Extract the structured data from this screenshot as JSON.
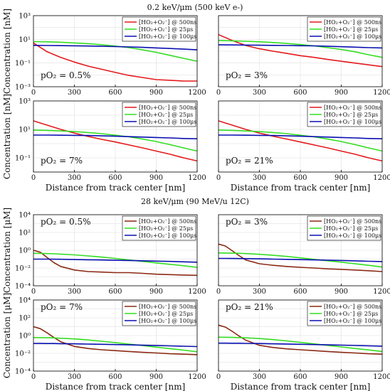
{
  "figure": {
    "title_top": "0.2 keV/μm (500 keV e-)",
    "title_bottom": "28 keV/μm (90 MeV/u 12C)"
  },
  "colors": {
    "red": "#e41a1c",
    "green": "#33dd22",
    "blue": "#0a10b0",
    "brown": "#8b2a14"
  },
  "chart_data": [
    {
      "type": "line",
      "group": "0.2 keV/μm (500 keV e-)",
      "annotation": "pO₂ = 0.5%",
      "xlabel": "",
      "ylabel": "Concentration [nM]",
      "xlim": [
        0,
        1200
      ],
      "ylim": [
        0.001,
        1000
      ],
      "yscale": "log",
      "xticks": [
        "0",
        "300",
        "600",
        "900",
        "1200"
      ],
      "yticks": [
        "10⁻³",
        "10⁻¹",
        "10¹",
        "10³"
      ],
      "legend_position": "top-right",
      "x": [
        0,
        100,
        200,
        300,
        400,
        500,
        600,
        700,
        800,
        900,
        1000,
        1100,
        1200
      ],
      "series": [
        {
          "name": "[HO₂+O₂⁻] @ 500ns",
          "color": "red",
          "values": [
            5.0,
            0.9,
            0.3,
            0.12,
            0.055,
            0.03,
            0.016,
            0.009,
            0.006,
            0.004,
            0.0035,
            0.003,
            0.003
          ]
        },
        {
          "name": "[HO₂+O₂⁻] @ 25μs",
          "color": "green",
          "values": [
            6.5,
            6.2,
            5.7,
            5.0,
            4.3,
            3.5,
            2.7,
            2.0,
            1.3,
            0.8,
            0.45,
            0.25,
            0.14
          ]
        },
        {
          "name": "[HO₂+O₂⁻] @ 100μs",
          "color": "blue",
          "values": [
            3.1,
            3.0,
            2.95,
            2.85,
            2.75,
            2.6,
            2.45,
            2.3,
            2.1,
            1.9,
            1.7,
            1.5,
            1.3
          ]
        }
      ]
    },
    {
      "type": "line",
      "group": "0.2 keV/μm (500 keV e-)",
      "annotation": "pO₂ = 3%",
      "xlabel": "",
      "ylabel": "",
      "xlim": [
        0,
        1200
      ],
      "ylim": [
        0.001,
        1000
      ],
      "yscale": "log",
      "xticks": [
        "0",
        "300",
        "600",
        "900",
        "1200"
      ],
      "yticks": [],
      "legend_position": "top-right",
      "x": [
        0,
        100,
        200,
        300,
        400,
        500,
        600,
        700,
        800,
        900,
        1000,
        1100,
        1200
      ],
      "series": [
        {
          "name": "[HO₂+O₂⁻] @ 500ns",
          "color": "red",
          "values": [
            25,
            8,
            3.0,
            1.6,
            1.0,
            0.65,
            0.42,
            0.3,
            0.2,
            0.14,
            0.1,
            0.07,
            0.05
          ]
        },
        {
          "name": "[HO₂+O₂⁻] @ 25μs",
          "color": "green",
          "values": [
            8.0,
            7.5,
            6.9,
            6.2,
            5.4,
            4.5,
            3.6,
            2.8,
            2.0,
            1.4,
            0.9,
            0.5,
            0.3
          ]
        },
        {
          "name": "[HO₂+O₂⁻] @ 100μs",
          "color": "blue",
          "values": [
            3.4,
            3.35,
            3.3,
            3.2,
            3.1,
            3.0,
            2.9,
            2.8,
            2.6,
            2.4,
            2.2,
            2.0,
            1.9
          ]
        }
      ]
    },
    {
      "type": "line",
      "group": "0.2 keV/μm (500 keV e-)",
      "annotation": "pO₂ = 7%",
      "xlabel": "Distance from track center [nm]",
      "ylabel": "Concentration [nM]",
      "xlim": [
        0,
        1200
      ],
      "ylim": [
        0.01,
        1000
      ],
      "yscale": "log",
      "xticks": [
        "0",
        "300",
        "600",
        "900",
        "1200"
      ],
      "yticks": [
        "10⁻¹",
        "10¹",
        "10³"
      ],
      "legend_position": "top-right",
      "x": [
        0,
        100,
        200,
        300,
        400,
        500,
        600,
        700,
        800,
        900,
        1000,
        1100,
        1200
      ],
      "series": [
        {
          "name": "[HO₂+O₂⁻] @ 500ns",
          "color": "red",
          "values": [
            40,
            20,
            10,
            5.5,
            3.2,
            2.0,
            1.3,
            0.8,
            0.5,
            0.3,
            0.18,
            0.1,
            0.06
          ]
        },
        {
          "name": "[HO₂+O₂⁻] @ 25μs",
          "color": "green",
          "values": [
            9.0,
            8.5,
            7.8,
            7.0,
            6.0,
            5.0,
            3.9,
            3.0,
            2.1,
            1.4,
            0.85,
            0.5,
            0.3
          ]
        },
        {
          "name": "[HO₂+O₂⁻] @ 100μs",
          "color": "blue",
          "values": [
            4.0,
            4.0,
            3.9,
            3.8,
            3.7,
            3.5,
            3.3,
            3.1,
            2.9,
            2.7,
            2.5,
            2.3,
            2.2
          ]
        }
      ]
    },
    {
      "type": "line",
      "group": "0.2 keV/μm (500 keV e-)",
      "annotation": "pO₂ = 21%",
      "xlabel": "Distance from track center [nm]",
      "ylabel": "",
      "xlim": [
        0,
        1200
      ],
      "ylim": [
        0.01,
        1000
      ],
      "yscale": "log",
      "xticks": [
        "0",
        "300",
        "600",
        "900",
        "1200"
      ],
      "yticks": [],
      "legend_position": "top-right",
      "x": [
        0,
        100,
        200,
        300,
        400,
        500,
        600,
        700,
        800,
        900,
        1000,
        1100,
        1200
      ],
      "series": [
        {
          "name": "[HO₂+O₂⁻] @ 500ns",
          "color": "red",
          "values": [
            40,
            20,
            10,
            5.5,
            3.3,
            2.1,
            1.3,
            0.8,
            0.5,
            0.3,
            0.18,
            0.1,
            0.06
          ]
        },
        {
          "name": "[HO₂+O₂⁻] @ 25μs",
          "color": "green",
          "values": [
            9.0,
            8.5,
            7.8,
            7.0,
            6.0,
            5.0,
            3.9,
            3.0,
            2.1,
            1.4,
            0.85,
            0.5,
            0.3
          ]
        },
        {
          "name": "[HO₂+O₂⁻] @ 100μs",
          "color": "blue",
          "values": [
            4.0,
            4.0,
            3.9,
            3.8,
            3.7,
            3.5,
            3.3,
            3.1,
            2.9,
            2.7,
            2.5,
            2.3,
            2.2
          ]
        }
      ]
    },
    {
      "type": "line",
      "group": "28 keV/μm (90 MeV/u 12C)",
      "annotation": "pO₂ = 0.5%",
      "xlabel": "",
      "ylabel": "Concentration [μM]",
      "xlim": [
        0,
        1200
      ],
      "ylim": [
        0.0001,
        10000
      ],
      "yscale": "log",
      "xticks": [
        "0",
        "300",
        "600",
        "900",
        "1200"
      ],
      "yticks": [
        "10⁻⁴",
        "10⁻²",
        "10⁰",
        "10²",
        "10⁴"
      ],
      "legend_position": "top-right",
      "x": [
        0,
        50,
        100,
        150,
        200,
        300,
        400,
        500,
        600,
        700,
        800,
        900,
        1000,
        1100,
        1200
      ],
      "series": [
        {
          "name": "[HO₂+O₂⁻] @ 500ns",
          "color": "brown",
          "values": [
            1.0,
            0.6,
            0.15,
            0.04,
            0.015,
            0.006,
            0.004,
            0.0035,
            0.003,
            0.003,
            0.0025,
            0.002,
            0.0018,
            0.0016,
            0.0015
          ]
        },
        {
          "name": "[HO₂+O₂⁻] @ 25μs",
          "color": "green",
          "values": [
            0.45,
            0.44,
            0.42,
            0.4,
            0.37,
            0.3,
            0.23,
            0.17,
            0.12,
            0.08,
            0.055,
            0.038,
            0.026,
            0.018,
            0.012
          ]
        },
        {
          "name": "[HO₂+O₂⁻] @ 100μs",
          "color": "blue",
          "values": [
            0.1,
            0.1,
            0.1,
            0.098,
            0.096,
            0.09,
            0.085,
            0.08,
            0.075,
            0.07,
            0.065,
            0.06,
            0.055,
            0.05,
            0.045
          ]
        }
      ]
    },
    {
      "type": "line",
      "group": "28 keV/μm (90 MeV/u 12C)",
      "annotation": "pO₂ = 3%",
      "xlabel": "",
      "ylabel": "",
      "xlim": [
        0,
        1200
      ],
      "ylim": [
        0.0001,
        10000
      ],
      "yscale": "log",
      "xticks": [
        "0",
        "300",
        "600",
        "900",
        "1200"
      ],
      "yticks": [],
      "legend_position": "top-right",
      "x": [
        0,
        50,
        100,
        150,
        200,
        300,
        400,
        500,
        600,
        700,
        800,
        900,
        1000,
        1100,
        1200
      ],
      "series": [
        {
          "name": "[HO₂+O₂⁻] @ 500ns",
          "color": "brown",
          "values": [
            5.0,
            3.0,
            0.9,
            0.25,
            0.08,
            0.03,
            0.02,
            0.015,
            0.012,
            0.01,
            0.008,
            0.007,
            0.006,
            0.005,
            0.004
          ]
        },
        {
          "name": "[HO₂+O₂⁻] @ 25μs",
          "color": "green",
          "values": [
            0.5,
            0.49,
            0.47,
            0.45,
            0.42,
            0.35,
            0.27,
            0.2,
            0.14,
            0.095,
            0.065,
            0.045,
            0.03,
            0.02,
            0.013
          ]
        },
        {
          "name": "[HO₂+O₂⁻] @ 100μs",
          "color": "blue",
          "values": [
            0.12,
            0.12,
            0.118,
            0.116,
            0.113,
            0.107,
            0.1,
            0.094,
            0.088,
            0.082,
            0.076,
            0.07,
            0.064,
            0.058,
            0.053
          ]
        }
      ]
    },
    {
      "type": "line",
      "group": "28 keV/μm (90 MeV/u 12C)",
      "annotation": "pO₂ = 7%",
      "xlabel": "Distance from track center [nm]",
      "ylabel": "Concentration [μM]",
      "xlim": [
        0,
        1200
      ],
      "ylim": [
        0.0001,
        10000
      ],
      "yscale": "log",
      "xticks": [
        "0",
        "300",
        "600",
        "900",
        "1200"
      ],
      "yticks": [
        "10⁻⁴",
        "10⁻²",
        "10⁰",
        "10²",
        "10⁴"
      ],
      "legend_position": "top-right",
      "x": [
        0,
        50,
        100,
        150,
        200,
        300,
        400,
        500,
        600,
        700,
        800,
        900,
        1000,
        1100,
        1200
      ],
      "series": [
        {
          "name": "[HO₂+O₂⁻] @ 500ns",
          "color": "brown",
          "values": [
            10,
            6,
            2.0,
            0.6,
            0.2,
            0.06,
            0.035,
            0.025,
            0.02,
            0.016,
            0.013,
            0.011,
            0.009,
            0.008,
            0.007
          ]
        },
        {
          "name": "[HO₂+O₂⁻] @ 25μs",
          "color": "green",
          "values": [
            0.6,
            0.59,
            0.57,
            0.54,
            0.5,
            0.42,
            0.32,
            0.23,
            0.16,
            0.11,
            0.075,
            0.05,
            0.034,
            0.023,
            0.015
          ]
        },
        {
          "name": "[HO₂+O₂⁻] @ 100μs",
          "color": "blue",
          "values": [
            0.13,
            0.13,
            0.128,
            0.126,
            0.123,
            0.117,
            0.11,
            0.103,
            0.096,
            0.089,
            0.082,
            0.075,
            0.069,
            0.063,
            0.058
          ]
        }
      ]
    },
    {
      "type": "line",
      "group": "28 keV/μm (90 MeV/u 12C)",
      "annotation": "pO₂ = 21%",
      "xlabel": "Distance from track center [nm]",
      "ylabel": "",
      "xlim": [
        0,
        1200
      ],
      "ylim": [
        0.0001,
        10000
      ],
      "yscale": "log",
      "xticks": [
        "0",
        "300",
        "600",
        "900",
        "1200"
      ],
      "yticks": [],
      "legend_position": "top-right",
      "x": [
        0,
        50,
        100,
        150,
        200,
        300,
        400,
        500,
        600,
        700,
        800,
        900,
        1000,
        1100,
        1200
      ],
      "series": [
        {
          "name": "[HO₂+O₂⁻] @ 500ns",
          "color": "brown",
          "values": [
            15,
            9,
            3.0,
            0.9,
            0.3,
            0.08,
            0.045,
            0.032,
            0.025,
            0.02,
            0.016,
            0.013,
            0.011,
            0.009,
            0.008
          ]
        },
        {
          "name": "[HO₂+O₂⁻] @ 25μs",
          "color": "green",
          "values": [
            0.65,
            0.64,
            0.62,
            0.59,
            0.55,
            0.46,
            0.35,
            0.25,
            0.17,
            0.115,
            0.078,
            0.052,
            0.035,
            0.024,
            0.016
          ]
        },
        {
          "name": "[HO₂+O₂⁻] @ 100μs",
          "color": "blue",
          "values": [
            0.14,
            0.14,
            0.138,
            0.136,
            0.133,
            0.126,
            0.119,
            0.111,
            0.104,
            0.097,
            0.09,
            0.083,
            0.076,
            0.07,
            0.064
          ]
        }
      ]
    }
  ]
}
